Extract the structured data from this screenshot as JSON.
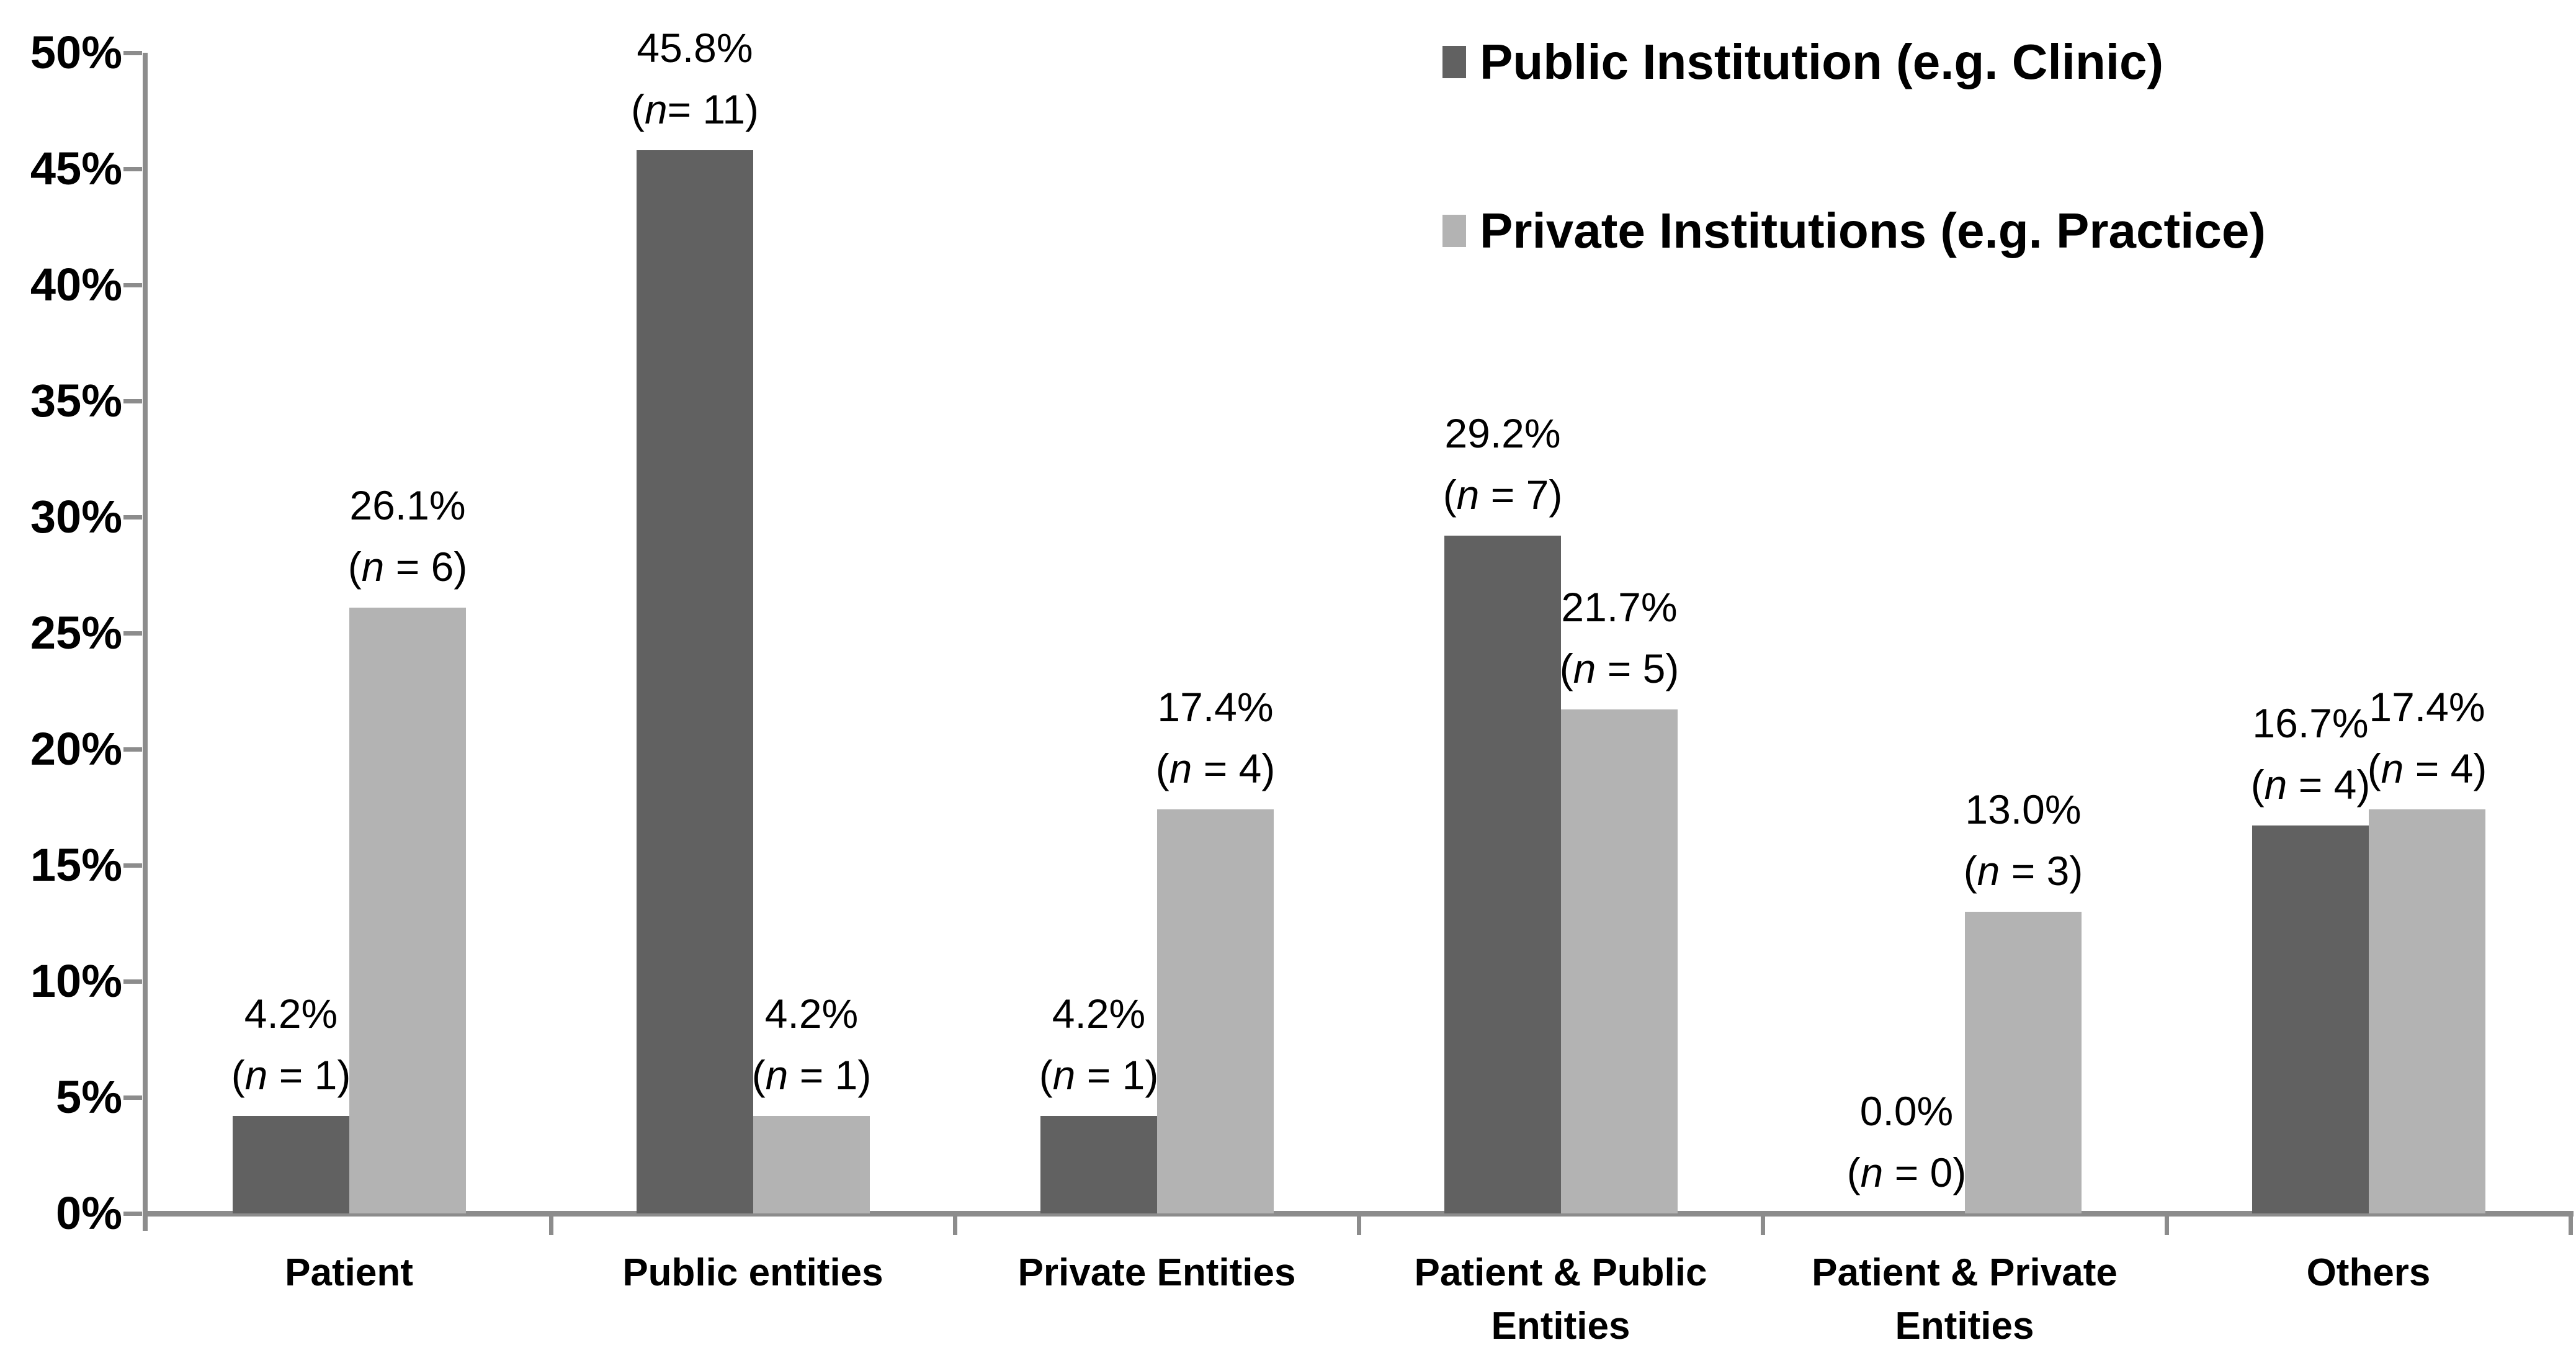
{
  "chart_data": {
    "type": "bar",
    "title": "",
    "legend_position": "top-right",
    "grid": false,
    "n_symbol": "n",
    "y_axis": {
      "min": 0,
      "max": 50,
      "tick_step": 5,
      "tick_labels_top_to_bottom": [
        "50%",
        "45%",
        "40%",
        "35%",
        "30%",
        "25%",
        "20%",
        "15%",
        "10%",
        "5%",
        "0%"
      ]
    },
    "categories": [
      {
        "label_lines": [
          "Patient"
        ]
      },
      {
        "label_lines": [
          "Public entities"
        ]
      },
      {
        "label_lines": [
          "Private Entities"
        ]
      },
      {
        "label_lines": [
          "Patient & Public",
          "Entities"
        ]
      },
      {
        "label_lines": [
          "Patient & Private",
          "Entities"
        ]
      },
      {
        "label_lines": [
          "Others"
        ]
      }
    ],
    "series": [
      {
        "name": "Public Institution (e.g. Clinic)",
        "color": "#616161",
        "points": [
          {
            "value": 4.2,
            "pct_label": "4.2%",
            "eq": " = ",
            "n": "1"
          },
          {
            "value": 45.8,
            "pct_label": "45.8%",
            "eq": "= ",
            "n": "11"
          },
          {
            "value": 4.2,
            "pct_label": "4.2%",
            "eq": " = ",
            "n": "1"
          },
          {
            "value": 29.2,
            "pct_label": "29.2%",
            "eq": " = ",
            "n": "7"
          },
          {
            "value": 0.0,
            "pct_label": "0.0%",
            "eq": " = ",
            "n": "0"
          },
          {
            "value": 16.7,
            "pct_label": "16.7%",
            "eq": " = ",
            "n": "4"
          }
        ]
      },
      {
        "name": "Private Institutions (e.g. Practice)",
        "color": "#B3B3B3",
        "points": [
          {
            "value": 26.1,
            "pct_label": "26.1%",
            "eq": " = ",
            "n": "6"
          },
          {
            "value": 4.2,
            "pct_label": "4.2%",
            "eq": " = ",
            "n": "1"
          },
          {
            "value": 17.4,
            "pct_label": "17.4%",
            "eq": " = ",
            "n": "4"
          },
          {
            "value": 21.7,
            "pct_label": "21.7%",
            "eq": " = ",
            "n": "5"
          },
          {
            "value": 13.0,
            "pct_label": "13.0%",
            "eq": " = ",
            "n": "3"
          },
          {
            "value": 17.4,
            "pct_label": "17.4%",
            "eq": " = ",
            "n": "4"
          }
        ]
      }
    ]
  },
  "colors": {
    "axis": "#8C8C8C",
    "text": "#000000",
    "background": "#FFFFFF"
  }
}
